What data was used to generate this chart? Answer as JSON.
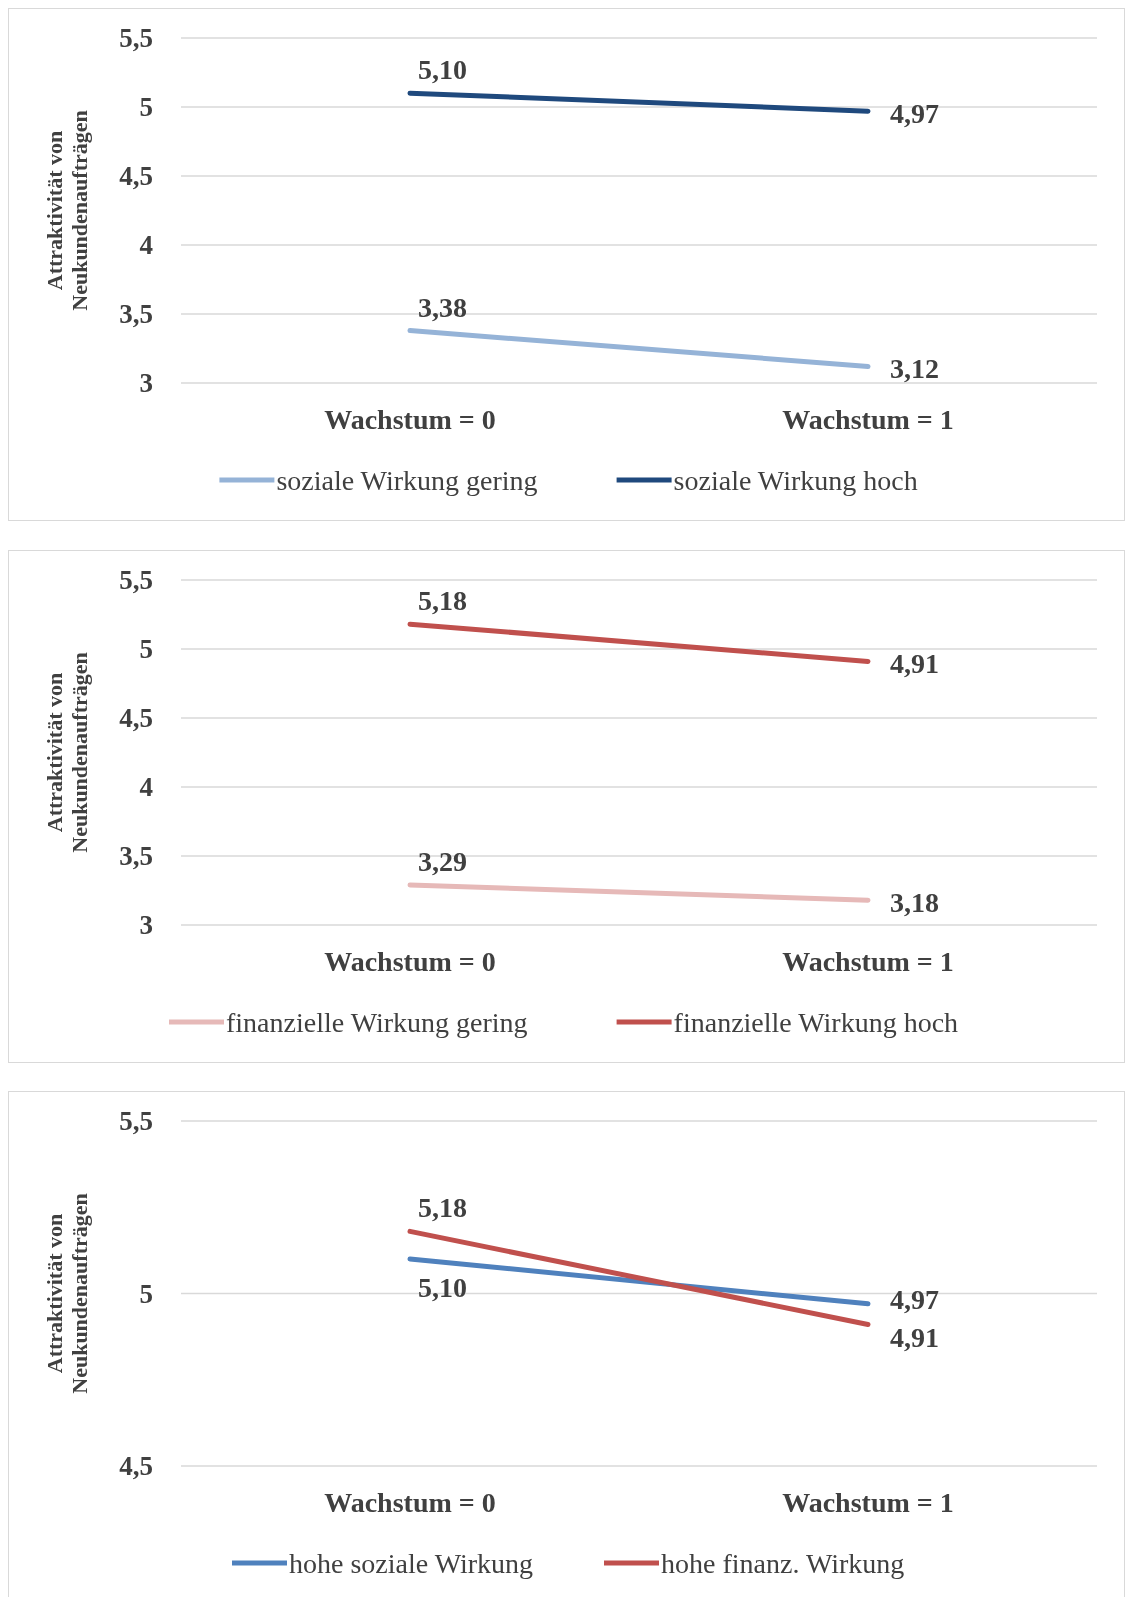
{
  "chart_data": [
    {
      "type": "line",
      "categories": [
        "Wachstum = 0",
        "Wachstum = 1"
      ],
      "ylabel": "Attraktivität von Neukundenaufträgen",
      "ylim": [
        3,
        5.5
      ],
      "yticks": [
        3,
        {
          "value": 3.5,
          "label": "3,5"
        },
        4,
        {
          "value": 4.5,
          "label": "4,5"
        },
        5,
        {
          "value": 5.5,
          "label": "5,5"
        }
      ],
      "grid": "y",
      "legend": "bottom",
      "series": [
        {
          "name": "soziale Wirkung gering",
          "color": "#95b3d7",
          "values": [
            3.38,
            3.12
          ],
          "value_labels": [
            "3,38",
            "3,12"
          ]
        },
        {
          "name": "soziale Wirkung hoch",
          "color": "#1f497d",
          "values": [
            5.1,
            4.97
          ],
          "value_labels": [
            "5,10",
            "4,97"
          ]
        }
      ]
    },
    {
      "type": "line",
      "categories": [
        "Wachstum = 0",
        "Wachstum = 1"
      ],
      "ylabel": "Attraktivität von Neukundenaufträgen",
      "ylim": [
        3,
        5.5
      ],
      "yticks": [
        3,
        {
          "value": 3.5,
          "label": "3,5"
        },
        4,
        {
          "value": 4.5,
          "label": "4,5"
        },
        5,
        {
          "value": 5.5,
          "label": "5,5"
        }
      ],
      "grid": "y",
      "legend": "bottom",
      "series": [
        {
          "name": "finanzielle Wirkung gering",
          "color": "#e6b9b8",
          "values": [
            3.29,
            3.18
          ],
          "value_labels": [
            "3,29",
            "3,18"
          ]
        },
        {
          "name": "finanzielle Wirkung hoch",
          "color": "#c0504d",
          "values": [
            5.18,
            4.91
          ],
          "value_labels": [
            "5,18",
            "4,91"
          ]
        }
      ]
    },
    {
      "type": "line",
      "categories": [
        "Wachstum = 0",
        "Wachstum = 1"
      ],
      "ylabel": "Attraktivität von Neukundenaufträgen",
      "ylim": [
        4.5,
        5.5
      ],
      "yticks": [
        {
          "value": 4.5,
          "label": "4,5"
        },
        5,
        {
          "value": 5.5,
          "label": "5,5"
        }
      ],
      "grid": "y",
      "legend": "bottom",
      "series": [
        {
          "name": "hohe soziale Wirkung",
          "color": "#4f81bd",
          "values": [
            5.1,
            4.97
          ],
          "value_labels": [
            "5,10",
            "4,97"
          ]
        },
        {
          "name": "hohe finanz. Wirkung",
          "color": "#c0504d",
          "values": [
            5.18,
            4.91
          ],
          "value_labels": [
            "5,18",
            "4,91"
          ]
        }
      ]
    }
  ]
}
